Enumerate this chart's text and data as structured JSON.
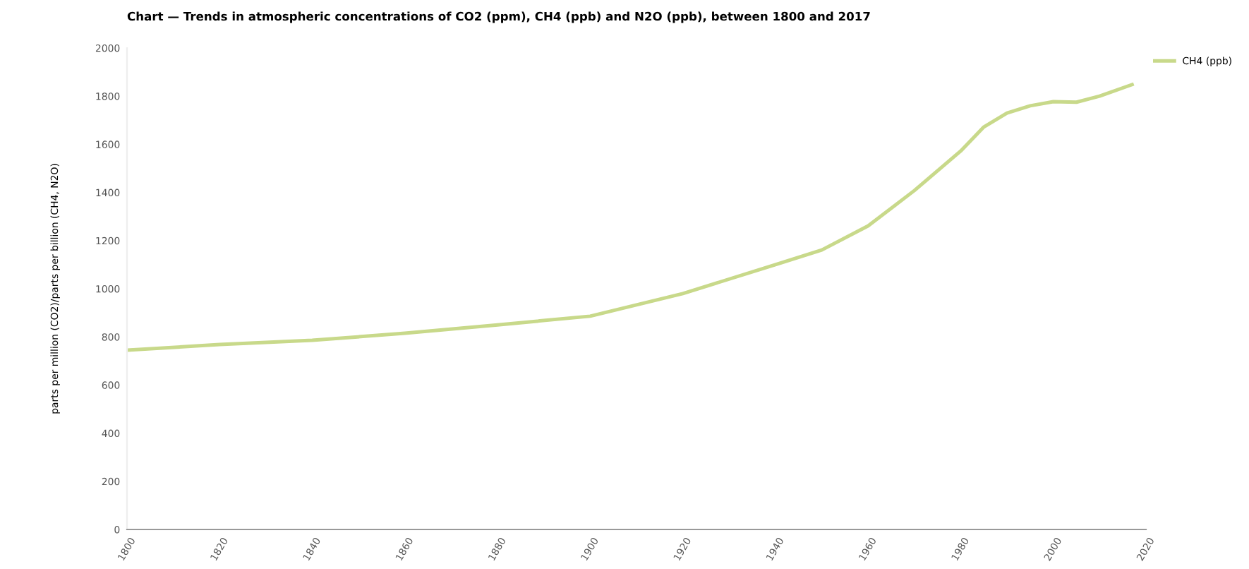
{
  "chart_data": {
    "type": "line",
    "title": "Chart — Trends in atmospheric concentrations of CO2 (ppm), CH4 (ppb) and N2O (ppb), between 1800 and 2017",
    "ylabel": "parts per million (CO2)/parts per billion (CH4, N2O)",
    "x": [
      1800,
      1820,
      1840,
      1860,
      1880,
      1900,
      1920,
      1940,
      1950,
      1960,
      1970,
      1980,
      1985,
      1990,
      1995,
      2000,
      2005,
      2010,
      2017
    ],
    "series": [
      {
        "name": "CH4 (ppb)",
        "color": "#c8d98a",
        "values": [
          745,
          768,
          786,
          815,
          850,
          886,
          980,
          1100,
          1161,
          1261,
          1408,
          1572,
          1672,
          1730,
          1760,
          1777,
          1775,
          1800,
          1848
        ]
      }
    ],
    "xlim": [
      1800,
      2020
    ],
    "xticks": [
      1800,
      1820,
      1840,
      1860,
      1880,
      1900,
      1920,
      1940,
      1960,
      1980,
      2000,
      2020
    ],
    "ylim": [
      0,
      2000
    ],
    "yticks": [
      0,
      200,
      400,
      600,
      800,
      1000,
      1200,
      1400,
      1600,
      1800,
      2000
    ],
    "grid": false,
    "legend": "top right",
    "marker": "none",
    "line_style": "solid"
  }
}
